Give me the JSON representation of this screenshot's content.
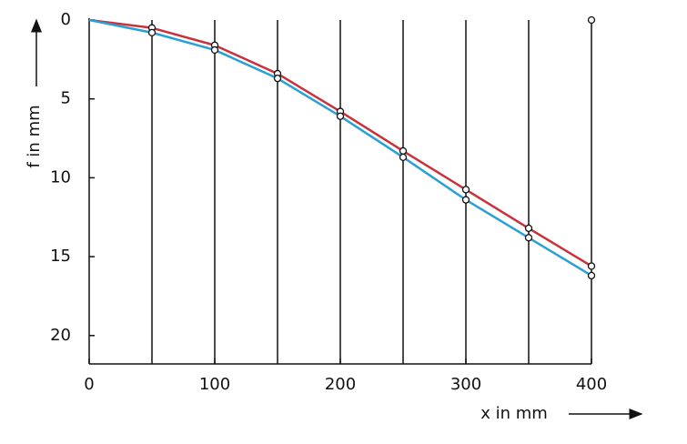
{
  "chart_data": {
    "type": "line",
    "x_label": "x in mm",
    "y_label": "f in mm",
    "x": [
      0,
      50,
      100,
      150,
      200,
      250,
      300,
      350,
      400
    ],
    "series": [
      {
        "color": "#c8323a",
        "values": [
          0,
          0.5,
          1.6,
          3.4,
          5.8,
          8.3,
          10.75,
          13.2,
          15.6
        ]
      },
      {
        "color": "#2a9fd6",
        "values": [
          0,
          0.8,
          1.9,
          3.7,
          6.1,
          8.7,
          11.4,
          13.8,
          16.2
        ]
      }
    ],
    "reference_point": {
      "x": 400,
      "y": 0
    },
    "xlim": [
      0,
      400
    ],
    "xticks": [
      0,
      100,
      200,
      300,
      400
    ],
    "x_gridlines": [
      50,
      100,
      150,
      200,
      250,
      300,
      350,
      400
    ],
    "ylim": [
      0,
      21.8
    ],
    "yticks": [
      0,
      5,
      10,
      15,
      20
    ],
    "y_inverted": true
  }
}
